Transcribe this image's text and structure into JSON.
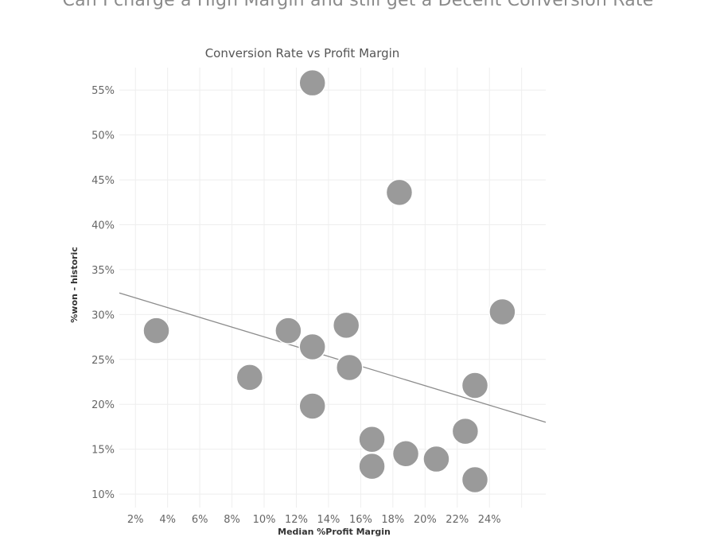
{
  "dashboard": {
    "title": "Can I charge a High Margin and still get a Decent Conversion Rate"
  },
  "chart_data": {
    "type": "scatter",
    "title": "Conversion Rate vs Profit Margin",
    "xlabel": "Median %Profit Margin",
    "ylabel": "%won - historic",
    "xlim": [
      1,
      27.5
    ],
    "ylim": [
      8.5,
      57.5
    ],
    "x_ticks": [
      "2%",
      "4%",
      "6%",
      "8%",
      "10%",
      "12%",
      "14%",
      "16%",
      "18%",
      "20%",
      "22%",
      "24%"
    ],
    "x_tick_values": [
      2,
      4,
      6,
      8,
      10,
      12,
      14,
      16,
      18,
      20,
      22,
      24
    ],
    "y_ticks": [
      "10%",
      "15%",
      "20%",
      "25%",
      "30%",
      "35%",
      "40%",
      "45%",
      "50%",
      "55%"
    ],
    "y_tick_values": [
      10,
      15,
      20,
      25,
      30,
      35,
      40,
      45,
      50,
      55
    ],
    "grid": true,
    "points": [
      {
        "x": 3.3,
        "y": 28.2
      },
      {
        "x": 9.1,
        "y": 23.0
      },
      {
        "x": 11.5,
        "y": 28.2
      },
      {
        "x": 13.0,
        "y": 55.8
      },
      {
        "x": 13.0,
        "y": 26.4
      },
      {
        "x": 13.0,
        "y": 19.8
      },
      {
        "x": 15.1,
        "y": 28.8
      },
      {
        "x": 15.3,
        "y": 24.1
      },
      {
        "x": 16.7,
        "y": 16.1
      },
      {
        "x": 16.7,
        "y": 13.1
      },
      {
        "x": 18.4,
        "y": 43.6
      },
      {
        "x": 18.8,
        "y": 14.5
      },
      {
        "x": 20.7,
        "y": 13.9
      },
      {
        "x": 22.5,
        "y": 17.0
      },
      {
        "x": 23.1,
        "y": 22.1
      },
      {
        "x": 23.1,
        "y": 11.6
      },
      {
        "x": 24.8,
        "y": 30.3
      }
    ],
    "trend_line": {
      "x": [
        1.0,
        27.5
      ],
      "y": [
        32.4,
        18.0
      ]
    }
  }
}
